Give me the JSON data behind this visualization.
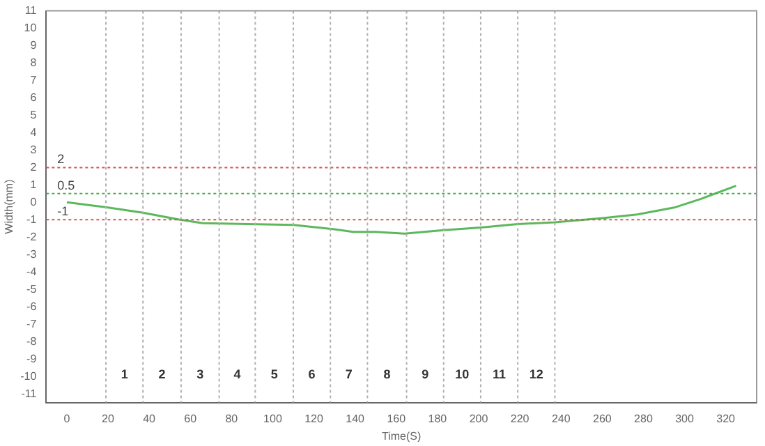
{
  "chart_data": {
    "type": "line",
    "xlabel": "Time(S)",
    "ylabel": "Width(mm)",
    "x": [
      0,
      20,
      37,
      55,
      66,
      110,
      130,
      139,
      150,
      164,
      183,
      201,
      219,
      237,
      261,
      277,
      295,
      308,
      325
    ],
    "series": [
      {
        "color": "#5cb85c",
        "values": [
          0,
          -0.3,
          -0.6,
          -1.0,
          -1.2,
          -1.3,
          -1.55,
          -1.7,
          -1.7,
          -1.8,
          -1.6,
          -1.45,
          -1.25,
          -1.15,
          -0.9,
          -0.7,
          -0.3,
          0.2,
          0.95
        ]
      }
    ],
    "xlim": [
      -10,
      335
    ],
    "xticks": [
      0,
      20,
      40,
      60,
      80,
      100,
      120,
      140,
      160,
      180,
      200,
      220,
      240,
      260,
      280,
      300,
      320
    ],
    "ylim": [
      -11.5,
      11
    ],
    "yticks": [
      -11,
      -10,
      -9,
      -8,
      -7,
      -6,
      -5,
      -4,
      -3,
      -2,
      -1,
      0,
      1,
      2,
      3,
      4,
      5,
      6,
      7,
      8,
      9,
      10,
      11
    ],
    "grid": false,
    "legend": false,
    "marker": "none",
    "line_style": "solid",
    "ref_lines": [
      {
        "axis": "y",
        "value": 2,
        "label": "2",
        "color": "#d9534f",
        "line_style": "dotted"
      },
      {
        "axis": "y",
        "value": 0.5,
        "label": "0.5",
        "color": "#3cb043",
        "line_style": "dotted"
      },
      {
        "axis": "y",
        "value": -1,
        "label": "-1",
        "color": "#d9534f",
        "line_style": "dotted"
      },
      {
        "axis": "x",
        "value": 19,
        "label": null,
        "color": "#b0b0b0",
        "line_style": "dotted"
      },
      {
        "axis": "x",
        "value": 37,
        "label": null,
        "color": "#b0b0b0",
        "line_style": "dotted"
      },
      {
        "axis": "x",
        "value": 55.5,
        "label": null,
        "color": "#b0b0b0",
        "line_style": "dotted"
      },
      {
        "axis": "x",
        "value": 74,
        "label": null,
        "color": "#b0b0b0",
        "line_style": "dotted"
      },
      {
        "axis": "x",
        "value": 91.5,
        "label": null,
        "color": "#b0b0b0",
        "line_style": "dotted"
      },
      {
        "axis": "x",
        "value": 110,
        "label": null,
        "color": "#b0b0b0",
        "line_style": "dotted"
      },
      {
        "axis": "x",
        "value": 128,
        "label": null,
        "color": "#b0b0b0",
        "line_style": "dotted"
      },
      {
        "axis": "x",
        "value": 146,
        "label": null,
        "color": "#b0b0b0",
        "line_style": "dotted"
      },
      {
        "axis": "x",
        "value": 165,
        "label": null,
        "color": "#b0b0b0",
        "line_style": "dotted"
      },
      {
        "axis": "x",
        "value": 183,
        "label": null,
        "color": "#b0b0b0",
        "line_style": "dotted"
      },
      {
        "axis": "x",
        "value": 201,
        "label": null,
        "color": "#b0b0b0",
        "line_style": "dotted"
      },
      {
        "axis": "x",
        "value": 219,
        "label": null,
        "color": "#b0b0b0",
        "line_style": "dotted"
      },
      {
        "axis": "x",
        "value": 237,
        "label": null,
        "color": "#b0b0b0",
        "line_style": "dotted"
      }
    ],
    "annotations": [
      "1",
      "2",
      "3",
      "4",
      "5",
      "6",
      "7",
      "8",
      "9",
      "10",
      "11",
      "12"
    ]
  }
}
